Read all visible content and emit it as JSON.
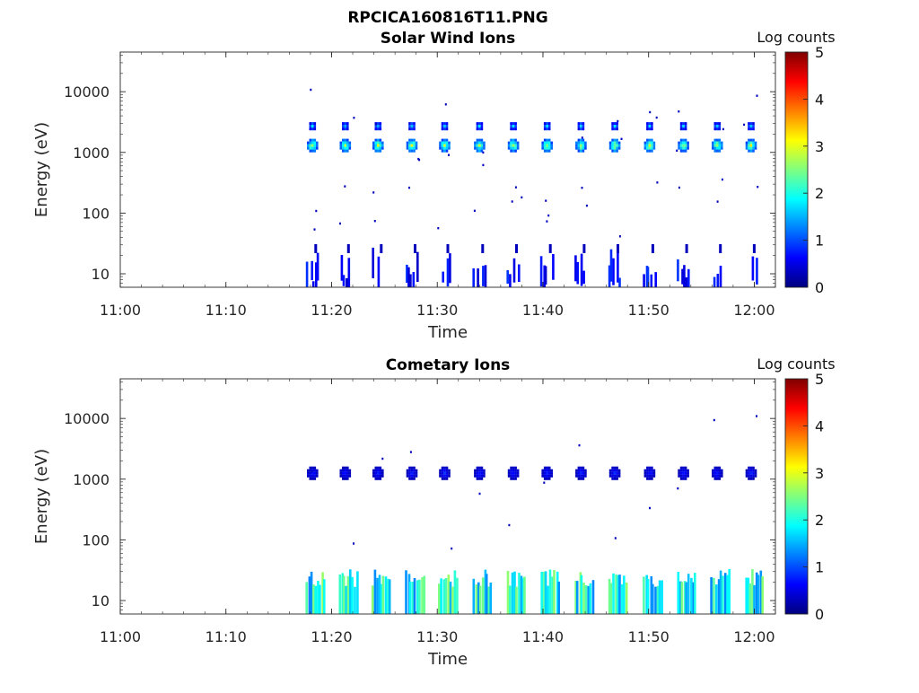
{
  "figure_title": "RPCICA160816T11.PNG",
  "colormap": [
    "#00007f",
    "#0000ff",
    "#007fff",
    "#00ffff",
    "#7fff7f",
    "#ffff00",
    "#ff7f00",
    "#ff0000",
    "#7f0000"
  ],
  "chart_data": [
    {
      "type": "heatmap",
      "title": "Solar Wind Ions",
      "xlabel": "Time",
      "ylabel": "Energy (eV)",
      "yscale": "log",
      "ylim": [
        6,
        45000
      ],
      "xlim": [
        "11:00",
        "12:02"
      ],
      "xticks": [
        "11:00",
        "11:10",
        "11:20",
        "11:30",
        "11:40",
        "11:50",
        "12:00"
      ],
      "yticks": [
        "10",
        "100",
        "1000",
        "10000"
      ],
      "colorbar": {
        "label": "Log counts",
        "min": 0,
        "max": 5,
        "ticks": [
          "0",
          "1",
          "2",
          "3",
          "4",
          "5"
        ]
      },
      "data_start": "11:17",
      "sweep_times": [
        "11:18.2",
        "11:21.3",
        "11:24.4",
        "11:27.6",
        "11:30.7",
        "11:34.0",
        "11:37.2",
        "11:40.4",
        "11:43.6",
        "11:46.8",
        "11:50.1",
        "11:53.3",
        "11:56.5",
        "11:59.7"
      ],
      "populations": [
        {
          "name_hint": "main peak",
          "energy_eV": 1300,
          "log_counts": 2.6
        },
        {
          "name_hint": "secondary peak",
          "energy_eV": 2700,
          "log_counts": 1.5
        },
        {
          "name_hint": "low energy",
          "energy_eV": 12,
          "log_counts": 0.6
        }
      ]
    },
    {
      "type": "heatmap",
      "title": "Cometary Ions",
      "xlabel": "Time",
      "ylabel": "Energy (eV)",
      "yscale": "log",
      "ylim": [
        6,
        45000
      ],
      "xlim": [
        "11:00",
        "12:02"
      ],
      "xticks": [
        "11:00",
        "11:10",
        "11:20",
        "11:30",
        "11:40",
        "11:50",
        "12:00"
      ],
      "yticks": [
        "10",
        "100",
        "1000",
        "10000"
      ],
      "colorbar": {
        "label": "Log counts",
        "min": 0,
        "max": 5,
        "ticks": [
          "0",
          "1",
          "2",
          "3",
          "4",
          "5"
        ]
      },
      "data_start": "11:17",
      "sweep_times": [
        "11:18.2",
        "11:21.3",
        "11:24.4",
        "11:27.6",
        "11:30.7",
        "11:34.0",
        "11:37.2",
        "11:40.4",
        "11:43.6",
        "11:46.8",
        "11:50.1",
        "11:53.3",
        "11:56.5",
        "11:59.7"
      ],
      "populations": [
        {
          "name_hint": "main peak",
          "energy_eV": 1250,
          "log_counts": 0.7
        },
        {
          "name_hint": "low energy",
          "energy_eV": 12,
          "log_counts": 2.3
        }
      ]
    }
  ]
}
